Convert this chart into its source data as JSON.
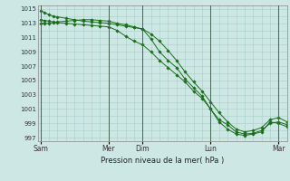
{
  "background_color": "#cde8e4",
  "grid_color": "#a8ccc8",
  "line_color": "#1a6e1a",
  "marker_color": "#1a6e1a",
  "xlabel_text": "Pression niveau de la mer( hPa )",
  "ylim": [
    996.5,
    1015.5
  ],
  "yticks": [
    997,
    999,
    1001,
    1003,
    1005,
    1007,
    1009,
    1011,
    1013,
    1015
  ],
  "x_day_labels": [
    "Sam",
    "Mer",
    "Dim",
    "Lun",
    "Mar"
  ],
  "x_day_positions": [
    0,
    96,
    144,
    240,
    336
  ],
  "xlim": [
    -4,
    348
  ],
  "line1_x": [
    0,
    6,
    12,
    18,
    24,
    36,
    48,
    60,
    72,
    84,
    96,
    108,
    120,
    132,
    144,
    156,
    168,
    180,
    192,
    204,
    216,
    228,
    240,
    252,
    264,
    276,
    288,
    300,
    312,
    324,
    336,
    348
  ],
  "line1_y": [
    1014.8,
    1014.5,
    1014.2,
    1014.0,
    1013.9,
    1013.7,
    1013.5,
    1013.3,
    1013.2,
    1013.1,
    1013.0,
    1012.8,
    1012.6,
    1012.4,
    1012.2,
    1010.8,
    1009.0,
    1007.8,
    1006.8,
    1005.2,
    1004.0,
    1002.8,
    1001.0,
    999.2,
    998.2,
    997.5,
    997.3,
    997.5,
    997.8,
    999.2,
    999.0,
    998.5
  ],
  "line2_x": [
    0,
    6,
    12,
    18,
    24,
    36,
    48,
    60,
    72,
    84,
    96,
    108,
    120,
    132,
    144,
    156,
    168,
    180,
    192,
    204,
    216,
    228,
    240,
    252,
    264,
    276,
    288,
    300,
    312,
    324,
    336,
    348
  ],
  "line2_y": [
    1013.5,
    1013.4,
    1013.3,
    1013.2,
    1013.1,
    1013.0,
    1012.9,
    1012.8,
    1012.7,
    1012.6,
    1012.5,
    1012.0,
    1011.2,
    1010.5,
    1010.0,
    1009.0,
    1007.8,
    1006.8,
    1005.8,
    1004.8,
    1003.5,
    1002.5,
    1001.0,
    999.5,
    998.8,
    997.8,
    997.5,
    997.6,
    998.0,
    999.0,
    999.2,
    998.8
  ],
  "line3_x": [
    0,
    6,
    12,
    18,
    24,
    36,
    48,
    60,
    72,
    84,
    96,
    108,
    120,
    132,
    144,
    156,
    168,
    180,
    192,
    204,
    216,
    228,
    240,
    252,
    264,
    276,
    288,
    300,
    312,
    324,
    336,
    348
  ],
  "line3_y": [
    1013.0,
    1013.0,
    1013.0,
    1013.1,
    1013.2,
    1013.3,
    1013.4,
    1013.5,
    1013.5,
    1013.4,
    1013.3,
    1013.0,
    1012.8,
    1012.5,
    1012.2,
    1011.5,
    1010.5,
    1009.2,
    1007.8,
    1006.2,
    1004.8,
    1003.5,
    1002.0,
    1000.5,
    999.2,
    998.2,
    997.8,
    998.0,
    998.4,
    999.5,
    999.8,
    999.2
  ]
}
